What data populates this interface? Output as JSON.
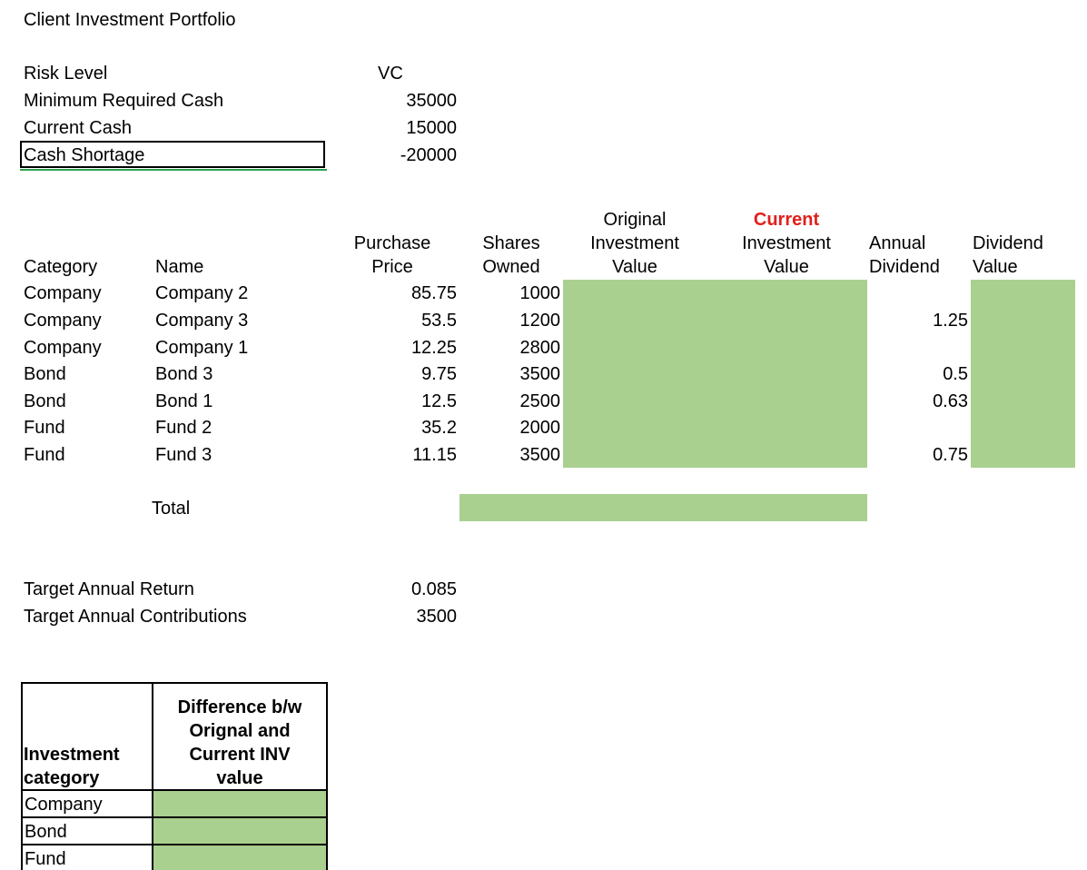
{
  "title": "Client Investment Portfolio",
  "summary": [
    {
      "label": "Risk Level",
      "value": "VC"
    },
    {
      "label": "Minimum Required Cash",
      "value": "35000"
    },
    {
      "label": "Current Cash",
      "value": "15000"
    },
    {
      "label": "Cash Shortage",
      "value": "-20000"
    }
  ],
  "headers": {
    "category": "Category",
    "name": "Name",
    "purchase_price_1": "Purchase",
    "purchase_price_2": "Price",
    "shares_owned_1": "Shares",
    "shares_owned_2": "Owned",
    "orig_inv_1": "Original",
    "orig_inv_2": "Investment",
    "orig_inv_3": "Value",
    "cur_inv_1": "Current",
    "cur_inv_2": "Investment",
    "cur_inv_3": "Value",
    "annual_div_1": "Annual",
    "annual_div_2": "Dividend",
    "div_value_1": "Dividend",
    "div_value_2": "Value"
  },
  "rows": [
    {
      "category": "Company",
      "name": "Company 2",
      "price": "85.75",
      "shares": "1000",
      "dividend": ""
    },
    {
      "category": "Company",
      "name": "Company 3",
      "price": "53.5",
      "shares": "1200",
      "dividend": "1.25"
    },
    {
      "category": "Company",
      "name": "Company 1",
      "price": "12.25",
      "shares": "2800",
      "dividend": ""
    },
    {
      "category": "Bond",
      "name": "Bond 3",
      "price": "9.75",
      "shares": "3500",
      "dividend": "0.5"
    },
    {
      "category": "Bond",
      "name": "Bond 1",
      "price": "12.5",
      "shares": "2500",
      "dividend": "0.63"
    },
    {
      "category": "Fund",
      "name": "Fund 2",
      "price": "35.2",
      "shares": "2000",
      "dividend": ""
    },
    {
      "category": "Fund",
      "name": "Fund 3",
      "price": "11.15",
      "shares": "3500",
      "dividend": "0.75"
    }
  ],
  "total_label": "Total",
  "targets": [
    {
      "label": "Target Annual Return",
      "value": "0.085"
    },
    {
      "label": "Target Annual Contributions",
      "value": "3500"
    }
  ],
  "diff_table": {
    "col1_line1": "Investment",
    "col1_line2": "category",
    "col2_line1": "Difference b/w",
    "col2_line2": "Orignal and",
    "col2_line3": "Current INV",
    "col2_line4": "value",
    "rows": [
      "Company",
      "Bond",
      "Fund"
    ]
  },
  "colors": {
    "fill_green": "#a9d08e",
    "header_red": "#e0201b"
  }
}
